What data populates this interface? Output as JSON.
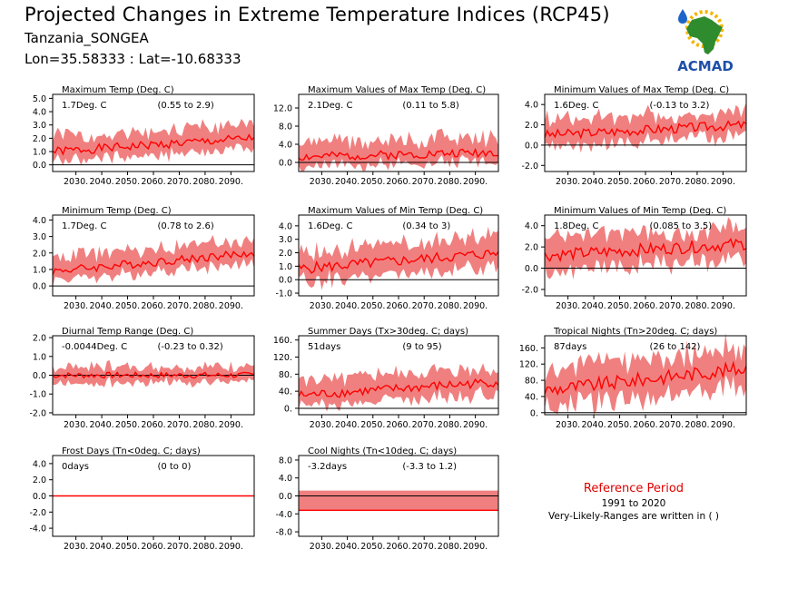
{
  "header": {
    "title": "Projected Changes in Extreme Temperature Indices (RCP45)",
    "location": "Tanzania_SONGEA",
    "coords": "Lon=35.58333 : Lat=-10.68333"
  },
  "logo": {
    "text": "ACMAD",
    "icon": "africa-map-sun-raindrop-logo"
  },
  "reference": {
    "title": "Reference Period",
    "years": "1991 to 2020",
    "note": "Very-Likely-Ranges are written in ( )"
  },
  "colors": {
    "line": "#ff0000",
    "band": "#f08080",
    "zero": "#000000"
  },
  "chart_data": [
    {
      "type": "line",
      "title": "Maximum Temp (Deg. C)",
      "value": "1.7Deg. C",
      "range": "(0.55 to 2.9)",
      "x": [
        2021,
        2099
      ],
      "ylim": [
        -0.5,
        5.3
      ],
      "yticks": [
        0,
        1,
        2,
        3,
        4,
        5
      ],
      "yticklabels": [
        "0.0",
        "1.0",
        "2.0",
        "3.0",
        "4.0",
        "5.0"
      ],
      "xticks": [
        "2030.",
        "2040.",
        "2050.",
        "2060.",
        "2070.",
        "2080.",
        "2090."
      ],
      "start": 1.0,
      "end": 2.0,
      "lo": 0.8,
      "hi": 1.1,
      "seed": 1
    },
    {
      "type": "line",
      "title": "Maximum Values of Max Temp (Deg. C)",
      "value": "2.1Deg. C",
      "range": "(0.11 to 5.8)",
      "x": [
        2021,
        2099
      ],
      "ylim": [
        -2,
        15
      ],
      "yticks": [
        0,
        4,
        8,
        12
      ],
      "yticklabels": [
        "0.0",
        "4.0",
        "8.0",
        "12.0"
      ],
      "xticks": [
        "2030.",
        "2040.",
        "2050.",
        "2060.",
        "2070.",
        "2080.",
        "2090."
      ],
      "start": 1.2,
      "end": 2.3,
      "lo": 2.0,
      "hi": 3.5,
      "seed": 2
    },
    {
      "type": "line",
      "title": "Minimum Values of Max Temp (Deg. C)",
      "value": "1.6Deg. C",
      "range": "(-0.13 to 3.2)",
      "x": [
        2021,
        2099
      ],
      "ylim": [
        -2.6,
        5.0
      ],
      "yticks": [
        -2,
        0,
        2,
        4
      ],
      "yticklabels": [
        "-2.0",
        "0.0",
        "2.0",
        "4.0"
      ],
      "xticks": [
        "2030.",
        "2040.",
        "2050.",
        "2060.",
        "2070.",
        "2080.",
        "2090."
      ],
      "start": 1.0,
      "end": 2.0,
      "lo": 1.2,
      "hi": 1.5,
      "seed": 3
    },
    {
      "type": "line",
      "title": "Minimum Temp (Deg. C)",
      "value": "1.7Deg. C",
      "range": "(0.78 to 2.6)",
      "x": [
        2021,
        2099
      ],
      "ylim": [
        -0.6,
        4.3
      ],
      "yticks": [
        0,
        1,
        2,
        3,
        4
      ],
      "yticklabels": [
        "0.0",
        "1.0",
        "2.0",
        "3.0",
        "4.0"
      ],
      "xticks": [
        "2030.",
        "2040.",
        "2050.",
        "2060.",
        "2070.",
        "2080.",
        "2090."
      ],
      "start": 0.9,
      "end": 2.0,
      "lo": 0.6,
      "hi": 0.9,
      "seed": 4
    },
    {
      "type": "line",
      "title": "Maximum Values of Min Temp (Deg. C)",
      "value": "1.6Deg. C",
      "range": "(0.34 to 3)",
      "x": [
        2021,
        2099
      ],
      "ylim": [
        -1.2,
        4.8
      ],
      "yticks": [
        -1,
        0,
        1,
        2,
        3,
        4
      ],
      "yticklabels": [
        "-1.0",
        "0.0",
        "1.0",
        "2.0",
        "3.0",
        "4.0"
      ],
      "xticks": [
        "2030.",
        "2040.",
        "2050.",
        "2060.",
        "2070.",
        "2080.",
        "2090."
      ],
      "start": 0.8,
      "end": 2.0,
      "lo": 1.0,
      "hi": 1.3,
      "seed": 5
    },
    {
      "type": "line",
      "title": "Minimum Values of Min Temp (Deg. C)",
      "value": "1.8Deg. C",
      "range": "(0.085 to 3.5)",
      "x": [
        2021,
        2099
      ],
      "ylim": [
        -2.6,
        5.0
      ],
      "yticks": [
        -2,
        0,
        2,
        4
      ],
      "yticklabels": [
        "-2.0",
        "0.0",
        "2.0",
        "4.0"
      ],
      "xticks": [
        "2030.",
        "2040.",
        "2050.",
        "2060.",
        "2070.",
        "2080.",
        "2090."
      ],
      "start": 1.2,
      "end": 2.3,
      "lo": 1.5,
      "hi": 1.8,
      "seed": 6
    },
    {
      "type": "line",
      "title": "Diurnal Temp Range (Deg. C)",
      "value": "-0.0044Deg. C",
      "range": "(-0.23 to 0.32)",
      "x": [
        2021,
        2099
      ],
      "ylim": [
        -2.1,
        2.1
      ],
      "yticks": [
        -2,
        -1,
        0,
        1,
        2
      ],
      "yticklabels": [
        "-2.0",
        "-1.0",
        "0.0",
        "1.0",
        "2.0"
      ],
      "xticks": [
        "2030.",
        "2040.",
        "2050.",
        "2060.",
        "2070.",
        "2080.",
        "2090."
      ],
      "start": 0.0,
      "end": 0.0,
      "lo": 0.4,
      "hi": 0.5,
      "seed": 7
    },
    {
      "type": "line",
      "title": "Summer Days (Tx>30deg. C; days)",
      "value": "51days",
      "range": "(9 to 95)",
      "x": [
        2021,
        2099
      ],
      "ylim": [
        -15,
        170
      ],
      "yticks": [
        0,
        40,
        80,
        120,
        160
      ],
      "yticklabels": [
        "0.",
        "40.",
        "80.",
        "120.",
        "160."
      ],
      "xticks": [
        "2030.",
        "2040.",
        "2050.",
        "2060.",
        "2070.",
        "2080.",
        "2090."
      ],
      "start": 30,
      "end": 62,
      "lo": 28,
      "hi": 35,
      "seed": 8
    },
    {
      "type": "line",
      "title": "Tropical Nights (Tn>20deg. C; days)",
      "value": "87days",
      "range": "(26 to 142)",
      "x": [
        2021,
        2099
      ],
      "ylim": [
        -5,
        190
      ],
      "yticks": [
        0,
        40,
        80,
        120,
        160
      ],
      "yticklabels": [
        "0.",
        "40.",
        "80.",
        "120.",
        "160."
      ],
      "xticks": [
        "2030.",
        "2040.",
        "2050.",
        "2060.",
        "2070.",
        "2080.",
        "2090."
      ],
      "start": 55,
      "end": 110,
      "lo": 45,
      "hi": 55,
      "seed": 9
    },
    {
      "type": "line",
      "title": "Frost Days (Tn<0deg. C; days)",
      "value": "0days",
      "range": "(0 to 0)",
      "x": [
        2021,
        2099
      ],
      "ylim": [
        -5,
        5
      ],
      "yticks": [
        -4,
        -2,
        0,
        2,
        4
      ],
      "yticklabels": [
        "-4.0",
        "-2.0",
        "0.0",
        "2.0",
        "4.0"
      ],
      "xticks": [
        "2030.",
        "2040.",
        "2050.",
        "2060.",
        "2070.",
        "2080.",
        "2090."
      ],
      "start": 0,
      "end": 0,
      "lo": 0,
      "hi": 0,
      "seed": 10
    },
    {
      "type": "line",
      "title": "Cool Nights (Tn<10deg. C; days)",
      "value": "-3.2days",
      "range": "(-3.3 to 1.2)",
      "x": [
        2021,
        2099
      ],
      "ylim": [
        -9,
        9
      ],
      "yticks": [
        -8,
        -4,
        0,
        4,
        8
      ],
      "yticklabels": [
        "-8.0",
        "-4.0",
        "0.0",
        "4.0",
        "8.0"
      ],
      "xticks": [
        "2030.",
        "2040.",
        "2050.",
        "2060.",
        "2070.",
        "2080.",
        "2090."
      ],
      "start": -3.2,
      "end": -3.2,
      "lo": 0,
      "hi": 4.4,
      "seed": 11,
      "flat": true
    }
  ]
}
